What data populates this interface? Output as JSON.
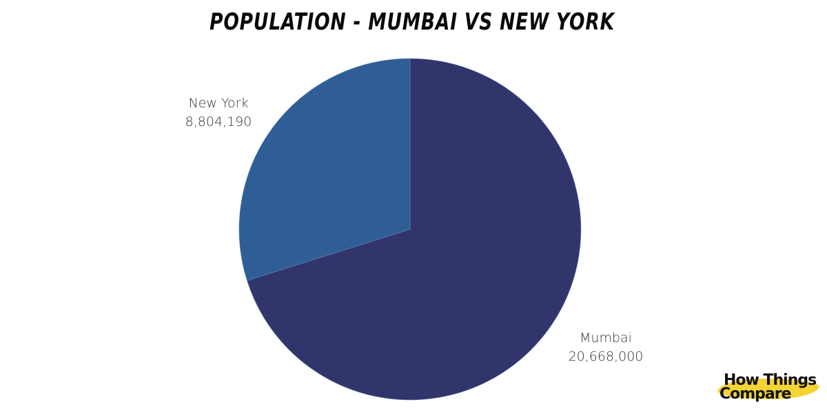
{
  "title": "POPULATION - MUMBAI VS NEW YORK",
  "colors": {
    "mumbai": "#31356b",
    "new_york": "#2e5e95",
    "background": "#ffffff"
  },
  "labels": {
    "new_york": {
      "name": "New York",
      "value": "8,804,190"
    },
    "mumbai": {
      "name": "Mumbai",
      "value": "20,668,000"
    }
  },
  "logo": {
    "line1": "How Things",
    "line2": "Compare"
  },
  "chart_data": {
    "type": "pie",
    "title": "POPULATION - MUMBAI VS NEW YORK",
    "categories": [
      "Mumbai",
      "New York"
    ],
    "values": [
      20668000,
      8804190
    ],
    "value_labels": [
      "20,668,000",
      "8,804,190"
    ],
    "colors": [
      "#31356b",
      "#2e5e95"
    ],
    "start_angle": "12 o'clock, clockwise",
    "legend": "none (direct labels)"
  }
}
